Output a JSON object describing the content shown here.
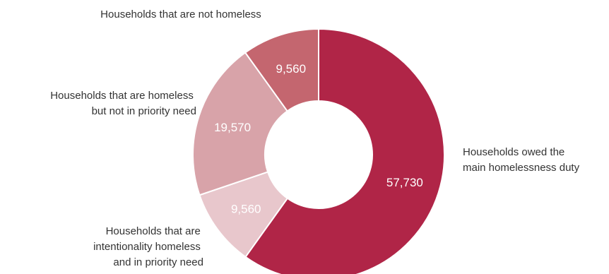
{
  "chart_data": {
    "type": "pie",
    "donut": true,
    "title": "",
    "slices": [
      {
        "category_lines": [
          "Households owed the",
          "main homelessness duty"
        ],
        "value": 57730,
        "value_label": "57,730",
        "color": "#b02547",
        "value_color": "#ffffff"
      },
      {
        "category_lines": [
          "Households that are",
          "intentionality homeless",
          "and in priority need"
        ],
        "value": 9560,
        "value_label": "9,560",
        "color": "#e8c7cc",
        "value_color": "#ffffff"
      },
      {
        "category_lines": [
          "Households that are homeless",
          "but not in priority need"
        ],
        "value": 19570,
        "value_label": "19,570",
        "color": "#d8a3a9",
        "value_color": "#ffffff"
      },
      {
        "category_lines": [
          "Households that are not homeless"
        ],
        "value": 9560,
        "value_label": "9,560",
        "color": "#c4666f",
        "value_color": "#ffffff"
      }
    ]
  }
}
